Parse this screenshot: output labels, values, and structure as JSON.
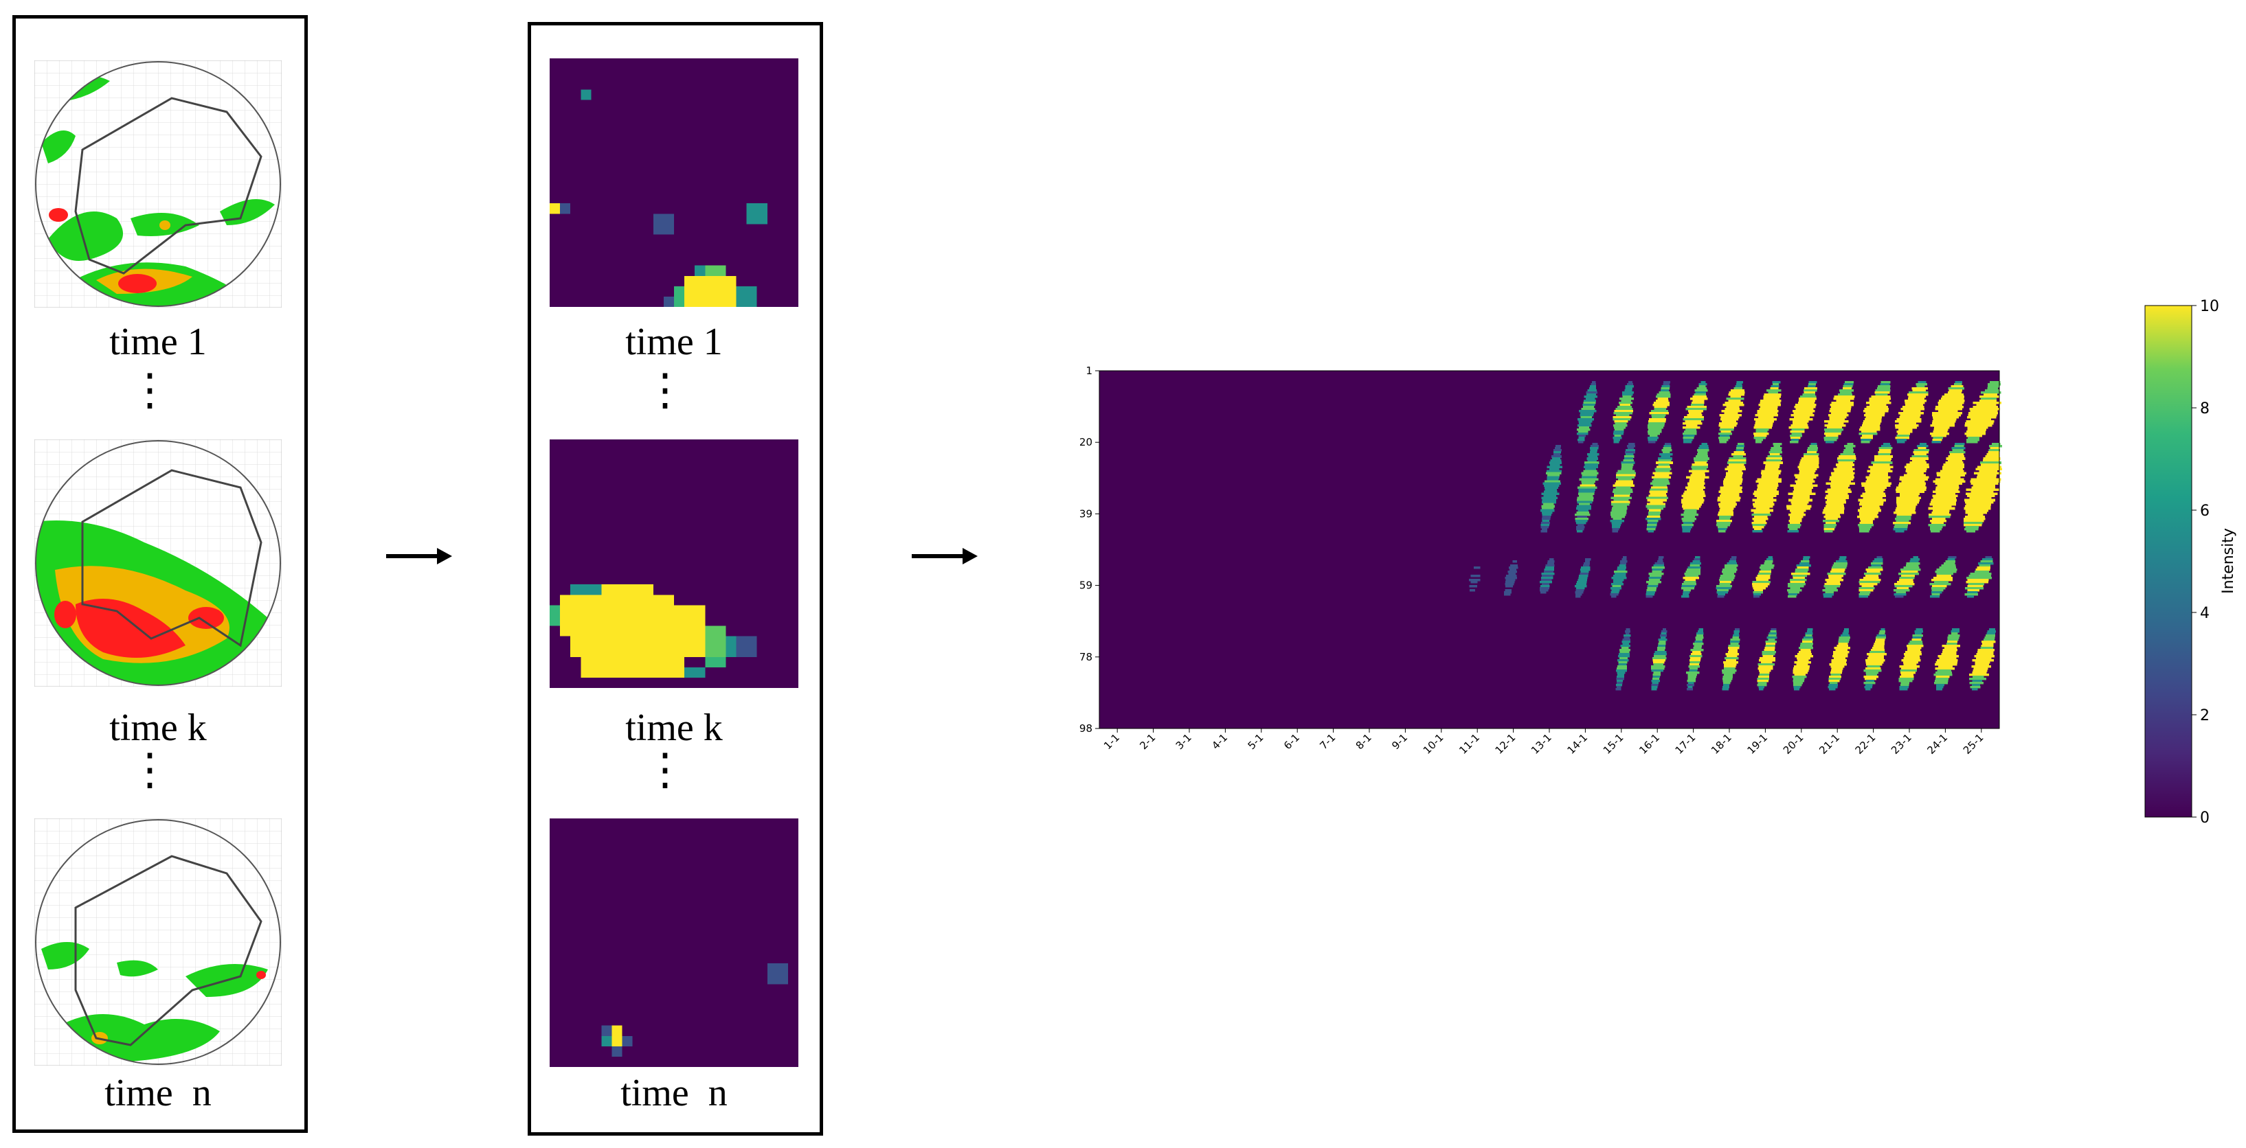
{
  "stage1": {
    "labels": [
      "time 1",
      "time k",
      "time  n"
    ],
    "ellipsis": "⋮"
  },
  "stage2": {
    "labels": [
      "time 1",
      "time k",
      "time  n"
    ],
    "ellipsis": "⋮"
  },
  "arrows": [
    "arrow-right-icon",
    "arrow-right-icon"
  ],
  "chart_data": {
    "type": "heatmap",
    "x_tick_labels": [
      "1-1",
      "2-1",
      "3-1",
      "4-1",
      "5-1",
      "6-1",
      "7-1",
      "8-1",
      "9-1",
      "10-1",
      "11-1",
      "12-1",
      "13-1",
      "14-1",
      "15-1",
      "16-1",
      "17-1",
      "18-1",
      "19-1",
      "20-1",
      "21-1",
      "22-1",
      "23-1",
      "24-1",
      "25-1"
    ],
    "y_tick_labels": [
      "1",
      "20",
      "39",
      "59",
      "78",
      "98"
    ],
    "colorbar": {
      "label": "Intensity",
      "range": [
        0,
        10
      ],
      "ticks": [
        "0",
        "2",
        "4",
        "6",
        "8",
        "10"
      ],
      "colormap": "viridis"
    },
    "colors": {
      "low": "#440154",
      "mid": "#21918c",
      "high": "#fde725"
    }
  }
}
